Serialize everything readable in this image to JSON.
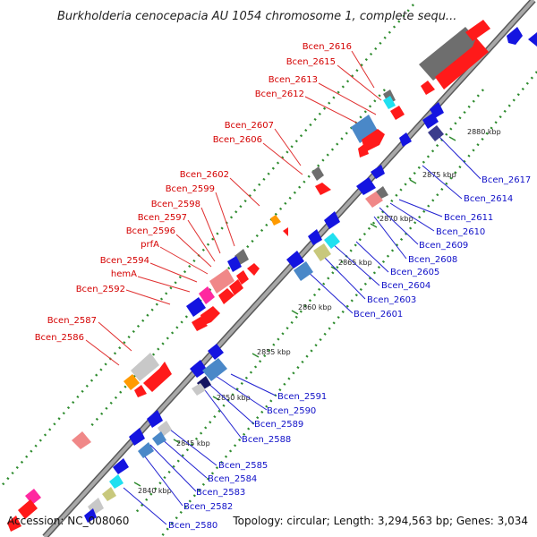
{
  "title": "Burkholderia cenocepacia AU 1054 chromosome 1, complete sequ...",
  "footer": {
    "accession": "Accession: NC_008060",
    "topology": "Topology: circular; Length: 3,294,563 bp; Genes: 3,034"
  },
  "ticks": [
    "2840 kbp",
    "2845 kbp",
    "2850 kbp",
    "2855 kbp",
    "2860 kbp",
    "2865 kbp",
    "2870 kbp",
    "2875 kbp",
    "2880 kbp"
  ],
  "left_labels": [
    "Bcen_2616",
    "Bcen_2615",
    "Bcen_2613",
    "Bcen_2612",
    "Bcen_2607",
    "Bcen_2606",
    "Bcen_2602",
    "Bcen_2599",
    "Bcen_2598",
    "Bcen_2597",
    "Bcen_2596",
    "prfA",
    "Bcen_2594",
    "hemA",
    "Bcen_2592",
    "Bcen_2587",
    "Bcen_2586"
  ],
  "right_labels": [
    "Bcen_2617",
    "Bcen_2614",
    "Bcen_2611",
    "Bcen_2610",
    "Bcen_2609",
    "Bcen_2608",
    "Bcen_2605",
    "Bcen_2604",
    "Bcen_2603",
    "Bcen_2601",
    "Bcen_2591",
    "Bcen_2590",
    "Bcen_2589",
    "Bcen_2588",
    "Bcen_2585",
    "Bcen_2584",
    "Bcen_2583",
    "Bcen_2582",
    "Bcen_2580"
  ],
  "colors": {
    "backbone": "#8c8c8c",
    "forward_cds": "#ff1a1a",
    "reverse_cds": "#1414e0",
    "left_label": "#d40000",
    "right_label": "#1010c8",
    "outer_dots": "#2e8b2e"
  }
}
